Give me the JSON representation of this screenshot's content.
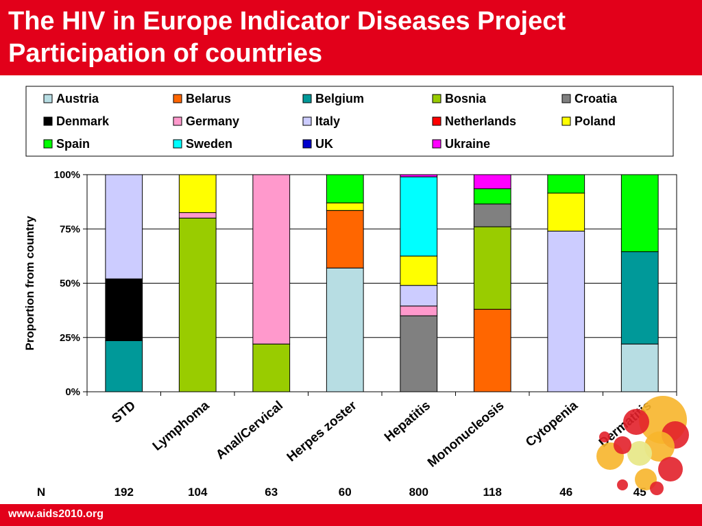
{
  "header": {
    "title_line1": "The HIV in Europe Indicator Diseases Project",
    "title_line2": "Participation of countries"
  },
  "footer": {
    "url": "www.aids2010.org"
  },
  "colors": {
    "brand_red": "#e2001a"
  },
  "chart_data": {
    "type": "bar",
    "stacked": true,
    "normalized": true,
    "ylabel": "Proportion from country",
    "xlabel": "",
    "ylim": [
      0,
      100
    ],
    "yticks": [
      "0%",
      "25%",
      "50%",
      "75%",
      "100%"
    ],
    "grid": true,
    "legend_position": "top",
    "categories": [
      "STD",
      "Lymphoma",
      "Anal/Cervical",
      "Herpes zoster",
      "Hepatitis",
      "Mononucleosis",
      "Cytopenia",
      "Dermatitis"
    ],
    "n_label": "N",
    "n_values": [
      "192",
      "104",
      "63",
      "60",
      "800",
      "118",
      "46",
      "45"
    ],
    "series": [
      {
        "name": "Austria",
        "color": "#b7dde3",
        "values": [
          0,
          0,
          0,
          57,
          0,
          0,
          0,
          22
        ]
      },
      {
        "name": "Belarus",
        "color": "#ff6600",
        "values": [
          0,
          0,
          0,
          26.5,
          0,
          38,
          0,
          0
        ]
      },
      {
        "name": "Belgium",
        "color": "#009999",
        "values": [
          23.5,
          0,
          0,
          0,
          0,
          0,
          0,
          42.5
        ]
      },
      {
        "name": "Bosnia",
        "color": "#99cc00",
        "values": [
          0,
          80,
          22,
          0,
          0,
          38,
          0,
          0
        ]
      },
      {
        "name": "Croatia",
        "color": "#808080",
        "values": [
          0,
          0,
          0,
          0,
          35,
          10.5,
          0,
          0
        ]
      },
      {
        "name": "Denmark",
        "color": "#000000",
        "values": [
          28.5,
          0,
          0,
          0,
          0,
          0,
          0,
          0
        ]
      },
      {
        "name": "Germany",
        "color": "#ff99cc",
        "values": [
          0,
          2.5,
          78,
          0,
          4.5,
          0,
          0,
          0
        ]
      },
      {
        "name": "Italy",
        "color": "#ccccff",
        "values": [
          48,
          0,
          0,
          0,
          9.5,
          0,
          74,
          0
        ]
      },
      {
        "name": "Netherlands",
        "color": "#ff0000",
        "values": [
          0,
          0,
          0,
          0,
          0,
          0,
          0,
          0
        ]
      },
      {
        "name": "Poland",
        "color": "#ffff00",
        "values": [
          0,
          17.5,
          0,
          3.5,
          13.5,
          0,
          17.5,
          0
        ]
      },
      {
        "name": "Spain",
        "color": "#00ff00",
        "values": [
          0,
          0,
          0,
          13,
          0,
          7,
          8.5,
          35.5
        ]
      },
      {
        "name": "Sweden",
        "color": "#00ffff",
        "values": [
          0,
          0,
          0,
          0,
          36.5,
          0,
          0,
          0
        ]
      },
      {
        "name": "UK",
        "color": "#0000cc",
        "values": [
          0,
          0,
          0,
          0,
          0,
          0,
          0,
          0
        ]
      },
      {
        "name": "Ukraine",
        "color": "#ff00ff",
        "values": [
          0,
          0,
          0,
          0,
          1,
          6.5,
          0,
          0
        ]
      }
    ]
  }
}
